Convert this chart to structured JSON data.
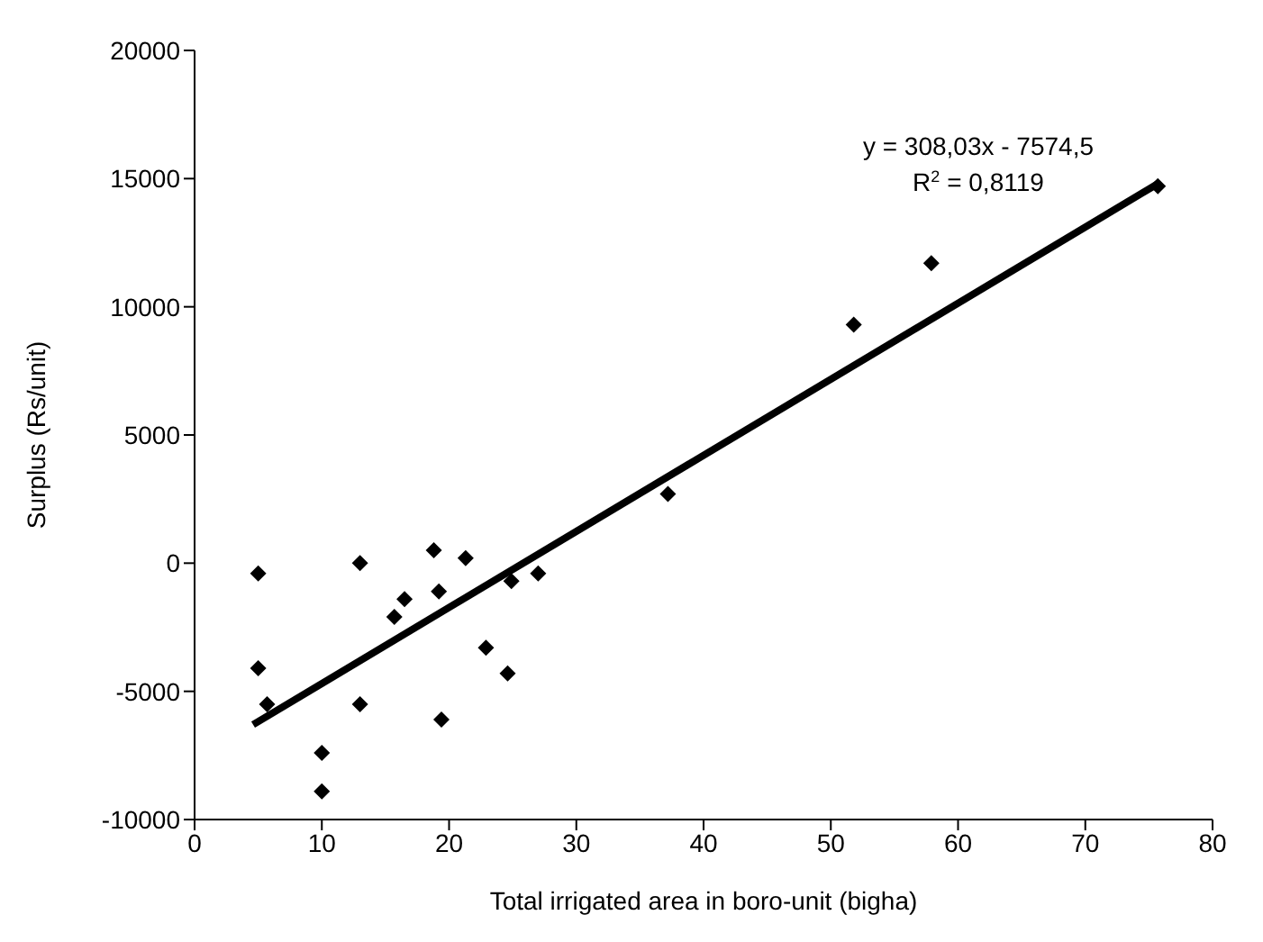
{
  "chart_data": {
    "type": "scatter",
    "xlabel": "Total irrigated area in boro-unit (bigha)",
    "ylabel": "Surplus    (Rs/unit)",
    "xlim": [
      0,
      80
    ],
    "xticks": [
      0,
      10,
      20,
      30,
      40,
      50,
      60,
      70,
      80
    ],
    "ylim": [
      -10000,
      20000
    ],
    "yticks": [
      -10000,
      -5000,
      0,
      5000,
      10000,
      15000,
      20000
    ],
    "grid": false,
    "legend": false,
    "marker": "diamond",
    "series": [
      {
        "color": "#000000",
        "x": [
          5,
          5,
          5.7,
          10,
          10,
          13,
          13,
          15.7,
          16.5,
          18.8,
          19.2,
          19.4,
          21.3,
          22.9,
          24.6,
          24.9,
          27,
          37.2,
          51.8,
          57.9,
          75.7
        ],
        "values": [
          -400,
          -4100,
          -5500,
          -7400,
          -8900,
          0,
          -5500,
          -2100,
          -1400,
          500,
          -1100,
          -6100,
          200,
          -3300,
          -4300,
          -700,
          -400,
          2700,
          9300,
          11700,
          14700
        ]
      },
      {
        "type": "line",
        "marker": "none",
        "color": "#000000",
        "x": [
          4.6,
          75.7
        ],
        "values": [
          -6300,
          14800
        ]
      }
    ],
    "annotations": [
      "y = 308,03x -  7574,5",
      "R$^{2}$ = 0,8119"
    ]
  }
}
